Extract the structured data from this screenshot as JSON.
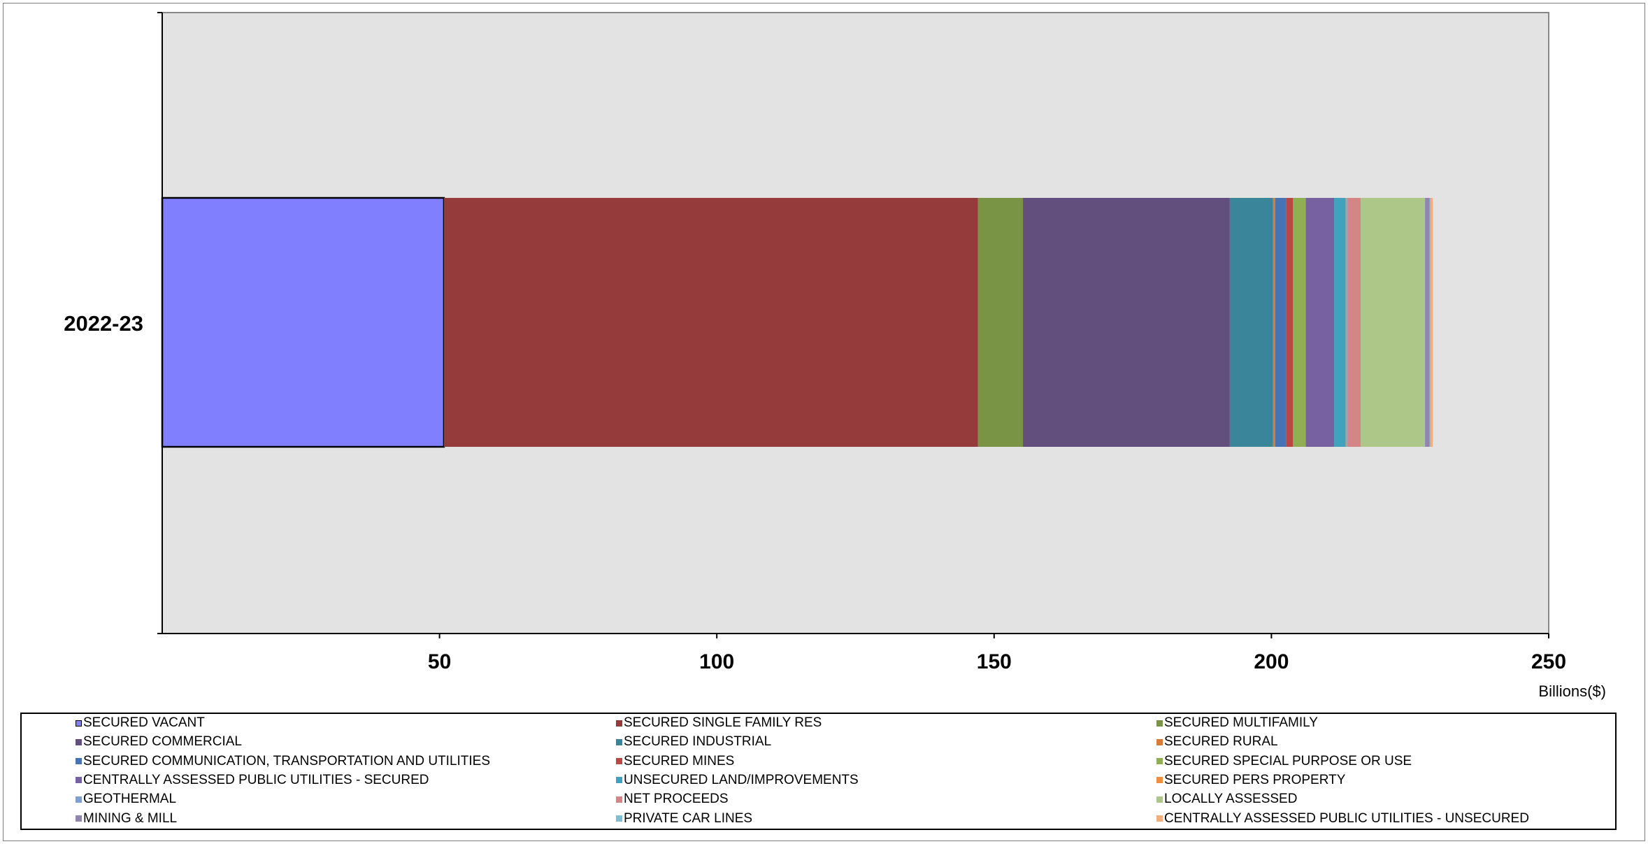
{
  "chart_data": {
    "type": "bar",
    "orientation": "horizontal",
    "stacked": true,
    "categories": [
      "2022-23"
    ],
    "unit_label": "Billions($)",
    "xlim": [
      0,
      250
    ],
    "x_ticks": [
      "50",
      "100",
      "150",
      "200",
      "250"
    ],
    "grid": false,
    "legend_position": "bottom",
    "plot_background": "#e3e3e3",
    "series": [
      {
        "name": "SECURED VACANT",
        "values": [
          50.8
        ],
        "color": "#8080ff",
        "outlined": true
      },
      {
        "name": "SECURED SINGLE FAMILY RES",
        "values": [
          96.3
        ],
        "color": "#953b3b"
      },
      {
        "name": "SECURED MULTIFAMILY",
        "values": [
          8.1
        ],
        "color": "#7a9445"
      },
      {
        "name": "SECURED COMMERCIAL",
        "values": [
          37.3
        ],
        "color": "#634f7e"
      },
      {
        "name": "SECURED INDUSTRIAL",
        "values": [
          7.8
        ],
        "color": "#3a8599"
      },
      {
        "name": "SECURED RURAL",
        "values": [
          0.4
        ],
        "color": "#d97b35"
      },
      {
        "name": "SECURED COMMUNICATION, TRANSPORTATION AND UTILITIES",
        "values": [
          2.0
        ],
        "color": "#4573b3"
      },
      {
        "name": "SECURED MINES",
        "values": [
          1.2
        ],
        "color": "#b84746"
      },
      {
        "name": "SECURED SPECIAL PURPOSE OR USE",
        "values": [
          2.3
        ],
        "color": "#8faf52"
      },
      {
        "name": "CENTRALLY ASSESSED PUBLIC UTILITIES - SECURED",
        "values": [
          5.1
        ],
        "color": "#7761a0"
      },
      {
        "name": "UNSECURED LAND/IMPROVEMENTS",
        "values": [
          2.1
        ],
        "color": "#40a2bd"
      },
      {
        "name": "SECURED PERS PROPERTY",
        "values": [
          0.2
        ],
        "color": "#f28f3d"
      },
      {
        "name": "GEOTHERMAL",
        "values": [
          0.1
        ],
        "color": "#7f9fcf"
      },
      {
        "name": "NET PROCEEDS",
        "values": [
          2.4
        ],
        "color": "#d48585"
      },
      {
        "name": "LOCALLY ASSESSED",
        "values": [
          11.6
        ],
        "color": "#adc788"
      },
      {
        "name": "MINING & MILL",
        "values": [
          0.8
        ],
        "color": "#9185b0"
      },
      {
        "name": "PRIVATE CAR LINES",
        "values": [
          0.2
        ],
        "color": "#7fbfd6"
      },
      {
        "name": "CENTRALLY ASSESSED PUBLIC UTILITIES - UNSECURED",
        "values": [
          0.4
        ],
        "color": "#f7ad7b"
      }
    ]
  }
}
